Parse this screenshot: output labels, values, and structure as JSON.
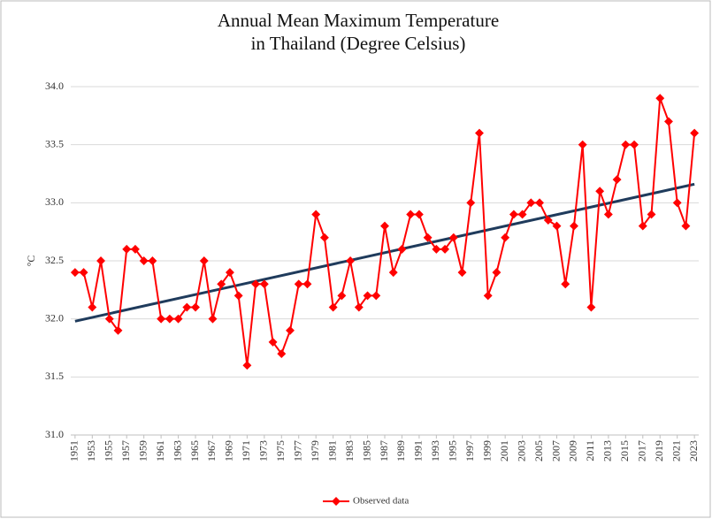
{
  "chart_data": {
    "type": "line",
    "title": [
      "Annual Mean Maximum Temperature",
      "in Thailand (Degree Celsius)"
    ],
    "y_label": "°C",
    "x": [
      1951,
      1952,
      1953,
      1954,
      1955,
      1956,
      1957,
      1958,
      1959,
      1960,
      1961,
      1962,
      1963,
      1964,
      1965,
      1966,
      1967,
      1968,
      1969,
      1970,
      1971,
      1972,
      1973,
      1974,
      1975,
      1976,
      1977,
      1978,
      1979,
      1980,
      1981,
      1982,
      1983,
      1984,
      1985,
      1986,
      1987,
      1988,
      1989,
      1990,
      1991,
      1992,
      1993,
      1994,
      1995,
      1996,
      1997,
      1998,
      1999,
      2000,
      2001,
      2002,
      2003,
      2004,
      2005,
      2006,
      2007,
      2008,
      2009,
      2010,
      2011,
      2012,
      2013,
      2014,
      2015,
      2016,
      2017,
      2018,
      2019,
      2020,
      2021,
      2022,
      2023
    ],
    "series": [
      {
        "name": "Observed data",
        "color": "#ff0000",
        "values": [
          32.4,
          32.4,
          32.1,
          32.5,
          32.0,
          31.9,
          32.6,
          32.6,
          32.5,
          32.5,
          32.0,
          32.0,
          32.0,
          32.1,
          32.1,
          32.5,
          32.0,
          32.3,
          32.4,
          32.2,
          31.6,
          32.3,
          32.3,
          31.8,
          31.7,
          31.9,
          32.3,
          32.3,
          32.9,
          32.7,
          32.1,
          32.2,
          32.5,
          32.1,
          32.2,
          32.2,
          32.8,
          32.4,
          32.6,
          32.9,
          32.9,
          32.7,
          32.6,
          32.6,
          32.7,
          32.4,
          33.0,
          33.6,
          32.2,
          32.4,
          32.7,
          32.9,
          32.9,
          33.0,
          33.0,
          32.85,
          32.8,
          32.3,
          32.8,
          33.5,
          32.1,
          33.1,
          32.9,
          33.2,
          33.5,
          33.5,
          32.8,
          32.9,
          33.9,
          33.7,
          33.0,
          32.8,
          33.6
        ]
      }
    ],
    "trendline": {
      "x": [
        1951,
        2023
      ],
      "values": [
        31.98,
        33.16
      ],
      "color": "#1f3b5c"
    },
    "xlim": [
      1950.5,
      2023.5
    ],
    "xticks": [
      1951,
      1953,
      1955,
      1957,
      1959,
      1961,
      1963,
      1965,
      1967,
      1969,
      1971,
      1973,
      1975,
      1977,
      1979,
      1981,
      1983,
      1985,
      1987,
      1989,
      1991,
      1993,
      1995,
      1997,
      1999,
      2001,
      2003,
      2005,
      2007,
      2009,
      2011,
      2013,
      2015,
      2017,
      2019,
      2021,
      2023
    ],
    "ylim": [
      31.0,
      34.0
    ],
    "yticks": [
      {
        "value": 31.0,
        "label": "31.0"
      },
      {
        "value": 31.5,
        "label": "31.5"
      },
      {
        "value": 32.0,
        "label": "32.0"
      },
      {
        "value": 32.5,
        "label": "32.5"
      },
      {
        "value": 33.0,
        "label": "33.0"
      },
      {
        "value": 33.5,
        "label": "33.5"
      },
      {
        "value": 34.0,
        "label": "34.0"
      }
    ],
    "grid": true,
    "legend": "bottom"
  }
}
